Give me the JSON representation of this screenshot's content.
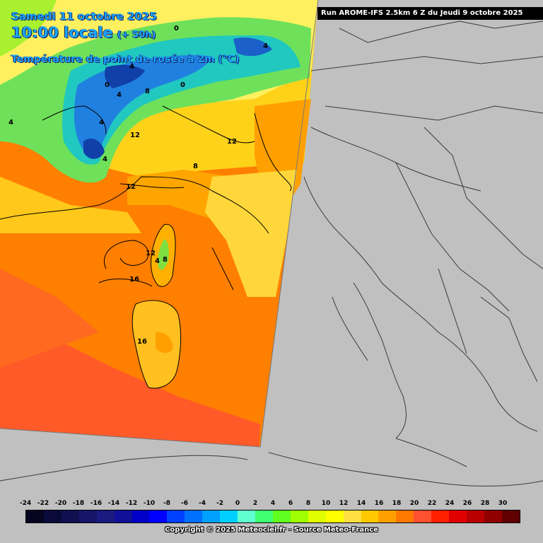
{
  "header": {
    "date": "Samedi 11 octobre 2025",
    "time": "10:00 locale",
    "lead": "(+ 50h)",
    "variable": "Température de point de rosée à 2m (°C)"
  },
  "run_info": "Run AROME-IFS 2.5km 6 Z du Jeudi 9 octobre 2025",
  "contour_labels": [
    "4",
    "4",
    "0",
    "0",
    "4",
    "8",
    "0",
    "4",
    "12",
    "12",
    "12",
    "8",
    "4",
    "4",
    "12",
    "4",
    "8",
    "16",
    "16"
  ],
  "scale": {
    "ticks": [
      "-24",
      "-22",
      "-20",
      "-18",
      "-16",
      "-14",
      "-12",
      "-10",
      "-8",
      "-6",
      "-4",
      "-2",
      "0",
      "2",
      "4",
      "6",
      "8",
      "10",
      "12",
      "14",
      "16",
      "18",
      "20",
      "22",
      "24",
      "26",
      "28",
      "30"
    ],
    "colors": [
      "#050520",
      "#0a0a3a",
      "#101050",
      "#15156a",
      "#1a1a80",
      "#101098",
      "#0000c8",
      "#0000ff",
      "#0040ff",
      "#0070ff",
      "#00a0ff",
      "#00d0ff",
      "#60ffd0",
      "#40ff70",
      "#60ff20",
      "#a0ff00",
      "#e0ff00",
      "#ffff00",
      "#ffe040",
      "#ffc800",
      "#ffa000",
      "#ff7800",
      "#ff5030",
      "#ff2000",
      "#e00000",
      "#b80000",
      "#900000",
      "#600000"
    ]
  },
  "copyright": "Copyright © 2025 Meteociel.fr - Source Meteo-France"
}
